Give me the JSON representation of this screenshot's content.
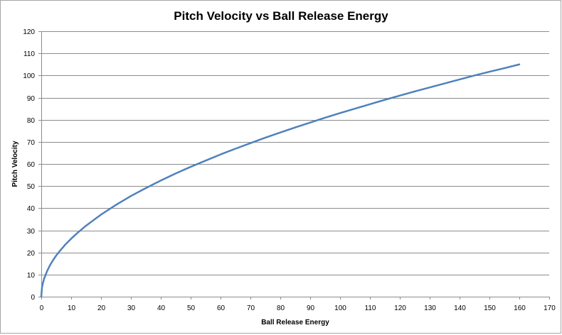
{
  "chart_data": {
    "type": "line",
    "title": "Pitch Velocity vs Ball Release Energy",
    "xlabel": "Ball Release Energy",
    "ylabel": "Pitch Velocity",
    "xlim": [
      0,
      170
    ],
    "ylim": [
      0,
      120
    ],
    "x_ticks": [
      "0",
      "10",
      "20",
      "30",
      "40",
      "50",
      "60",
      "70",
      "80",
      "90",
      "100",
      "110",
      "120",
      "130",
      "140",
      "150",
      "160",
      "170"
    ],
    "y_ticks": [
      "0",
      "10",
      "20",
      "30",
      "40",
      "50",
      "60",
      "70",
      "80",
      "90",
      "100",
      "110",
      "120"
    ],
    "grid": "horizontal",
    "legend": "none",
    "series_color": "#4f81bd",
    "series": [
      {
        "x": [
          0,
          0.25,
          0.5,
          1,
          2,
          3,
          4,
          5,
          6,
          8,
          10,
          12,
          15,
          20,
          25,
          30,
          35,
          40,
          45,
          50,
          55,
          60,
          65,
          70,
          75,
          80,
          85,
          90,
          95,
          100,
          105,
          110,
          115,
          120,
          125,
          130,
          135,
          140,
          145,
          150,
          155,
          160
        ],
        "y": [
          0,
          4.2,
          5.9,
          8.3,
          11.7,
          14.4,
          16.6,
          18.6,
          20.3,
          23.5,
          26.2,
          28.7,
          32.1,
          37.1,
          41.5,
          45.5,
          49.1,
          52.5,
          55.7,
          58.7,
          61.5,
          64.3,
          66.9,
          69.4,
          71.9,
          74.2,
          76.5,
          78.7,
          80.9,
          83.0,
          85.0,
          87.0,
          89.0,
          90.9,
          92.8,
          94.6,
          96.4,
          98.2,
          100.0,
          101.7,
          103.3,
          105.0
        ]
      }
    ]
  }
}
